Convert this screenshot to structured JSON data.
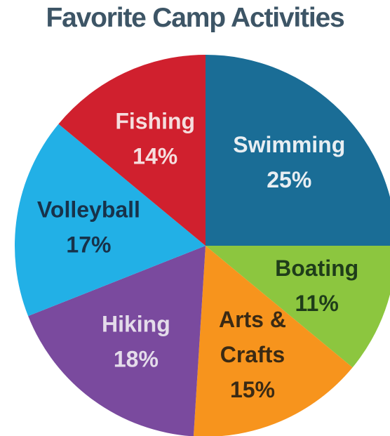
{
  "chart_data": {
    "type": "pie",
    "title": "Favorite Camp Activities",
    "slices": [
      {
        "name": "Swimming",
        "value": 25,
        "label_lines": [
          "Swimming",
          "25%"
        ],
        "color": "#1a6d96",
        "text_color": "#e8eef2"
      },
      {
        "name": "Boating",
        "value": 11,
        "label_lines": [
          "Boating",
          "11%"
        ],
        "color": "#8cc63f",
        "text_color": "#1f3d1a"
      },
      {
        "name": "Arts & Crafts",
        "value": 15,
        "label_lines": [
          "Arts &",
          "Crafts",
          "15%"
        ],
        "color": "#f7941d",
        "text_color": "#3a2a14"
      },
      {
        "name": "Hiking",
        "value": 18,
        "label_lines": [
          "Hiking",
          "18%"
        ],
        "color": "#7a4a9e",
        "text_color": "#e4dcea"
      },
      {
        "name": "Volleyball",
        "value": 17,
        "label_lines": [
          "Volleyball",
          "17%"
        ],
        "color": "#22b0e6",
        "text_color": "#17324a"
      },
      {
        "name": "Fishing",
        "value": 14,
        "label_lines": [
          "Fishing",
          "14%"
        ],
        "color": "#d0202e",
        "text_color": "#f5dede"
      }
    ]
  }
}
